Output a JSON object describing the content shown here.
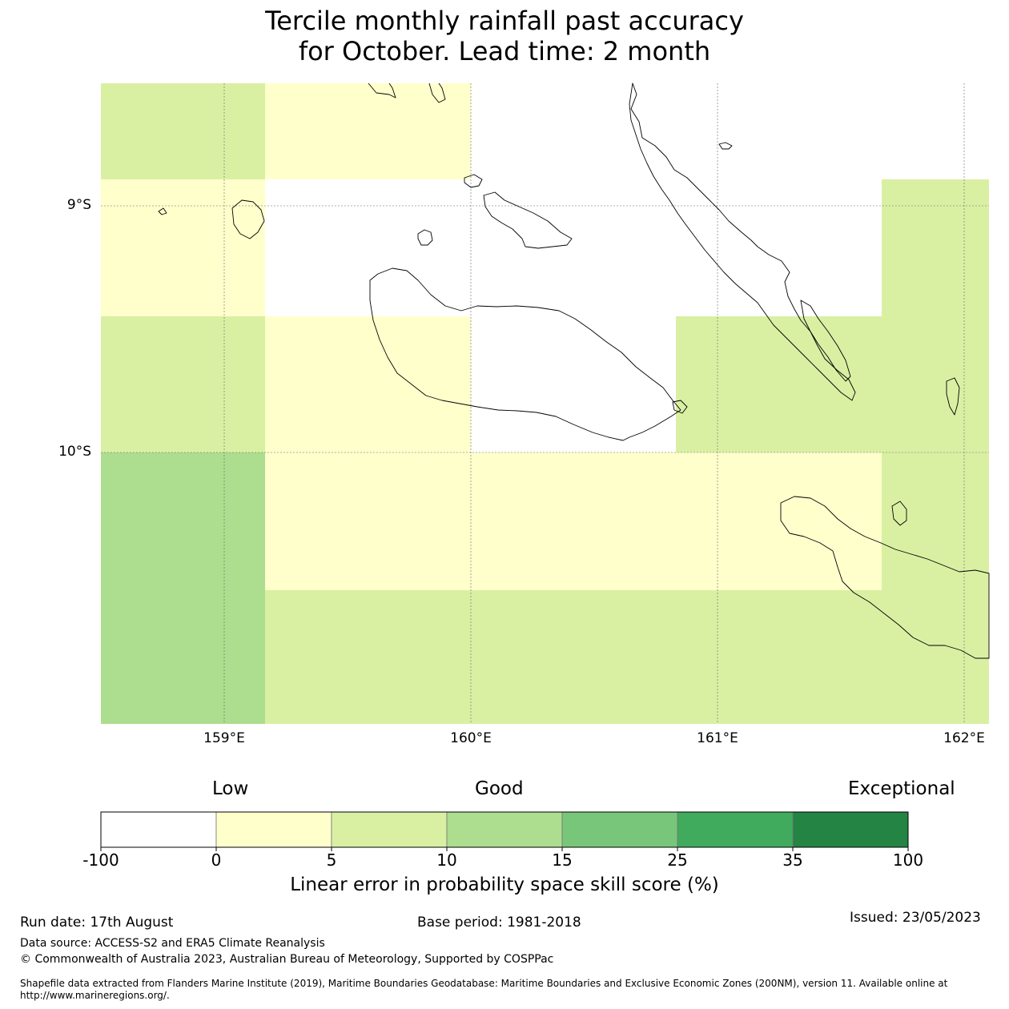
{
  "title": {
    "line1": "Tercile monthly rainfall past accuracy",
    "line2": "for October. Lead time: 2 month"
  },
  "map": {
    "lat_labels": [
      "9°S",
      "10°S"
    ],
    "lon_labels": [
      "159°E",
      "160°E",
      "161°E",
      "162°E"
    ],
    "grid_cells": [
      {
        "row": 0,
        "col": 0,
        "color": "#d9f0a3"
      },
      {
        "row": 0,
        "col": 1,
        "color": "#ffffcc"
      },
      {
        "row": 0,
        "col": 2,
        "color": "#ffffff"
      },
      {
        "row": 0,
        "col": 3,
        "color": "#ffffff"
      },
      {
        "row": 0,
        "col": 4,
        "color": "#ffffff"
      },
      {
        "row": 1,
        "col": 0,
        "color": "#ffffcc"
      },
      {
        "row": 1,
        "col": 1,
        "color": "#ffffff"
      },
      {
        "row": 1,
        "col": 2,
        "color": "#ffffff"
      },
      {
        "row": 1,
        "col": 3,
        "color": "#ffffff"
      },
      {
        "row": 1,
        "col": 4,
        "color": "#d9f0a3"
      },
      {
        "row": 2,
        "col": 0,
        "color": "#d9f0a3"
      },
      {
        "row": 2,
        "col": 1,
        "color": "#ffffcc"
      },
      {
        "row": 2,
        "col": 2,
        "color": "#ffffff"
      },
      {
        "row": 2,
        "col": 3,
        "color": "#d9f0a3"
      },
      {
        "row": 2,
        "col": 4,
        "color": "#d9f0a3"
      },
      {
        "row": 3,
        "col": 0,
        "color": "#addd8e"
      },
      {
        "row": 3,
        "col": 1,
        "color": "#ffffcc"
      },
      {
        "row": 3,
        "col": 2,
        "color": "#ffffcc"
      },
      {
        "row": 3,
        "col": 3,
        "color": "#ffffcc"
      },
      {
        "row": 3,
        "col": 4,
        "color": "#d9f0a3"
      },
      {
        "row": 4,
        "col": 0,
        "color": "#addd8e"
      },
      {
        "row": 4,
        "col": 1,
        "color": "#d9f0a3"
      },
      {
        "row": 4,
        "col": 2,
        "color": "#d9f0a3"
      },
      {
        "row": 4,
        "col": 3,
        "color": "#d9f0a3"
      },
      {
        "row": 4,
        "col": 4,
        "color": "#d9f0a3"
      }
    ]
  },
  "colorbar": {
    "categories": [
      "Low",
      "Good",
      "Exceptional"
    ],
    "ticks": [
      "-100",
      "0",
      "5",
      "10",
      "15",
      "25",
      "35",
      "100"
    ],
    "colors": [
      "#ffffff",
      "#ffffcc",
      "#d9f0a3",
      "#addd8e",
      "#78c679",
      "#41ab5d",
      "#238443"
    ],
    "label": "Linear error in probability space skill score (%)"
  },
  "footer": {
    "run_date": "Run date: 17th August",
    "base_period": "Base period: 1981-2018",
    "issued": "Issued: 23/05/2023",
    "data_source": "Data source: ACCESS-S2 and ERA5 Climate Reanalysis",
    "copyright": "© Commonwealth of Australia 2023, Australian Bureau of Meteorology, Supported by COSPPac",
    "shapefile": "Shapefile data extracted from Flanders Marine Institute (2019), Maritime Boundaries Geodatabase: Maritime Boundaries and Exclusive Economic Zones (200NM), version 11. Available online at http://www.marineregions.org/."
  }
}
